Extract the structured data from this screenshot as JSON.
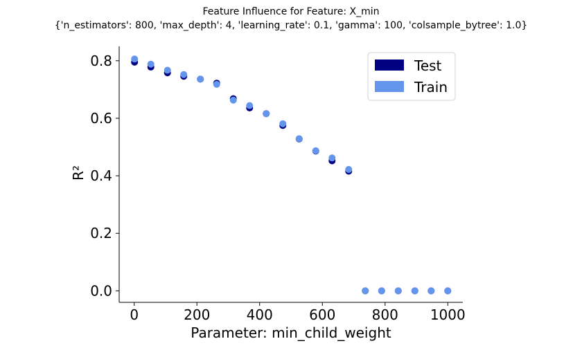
{
  "chart_data": {
    "type": "scatter",
    "title": "Feature Influence for Feature: X_min",
    "subtitle": "{'n_estimators': 800, 'max_depth': 4, 'learning_rate': 0.1, 'gamma': 100, 'colsample_bytree': 1.0}",
    "xlabel": "Parameter: min_child_weight",
    "ylabel": "R²",
    "xlim": [
      -48,
      1048
    ],
    "ylim": [
      -0.04,
      0.85
    ],
    "xticks": [
      0,
      200,
      400,
      600,
      800,
      1000
    ],
    "yticks": [
      0.0,
      0.2,
      0.4,
      0.6,
      0.8
    ],
    "x": [
      1,
      53,
      106,
      158,
      211,
      263,
      316,
      368,
      421,
      474,
      526,
      579,
      631,
      684,
      737,
      789,
      842,
      895,
      947,
      1000
    ],
    "series": [
      {
        "name": "Test",
        "color": "#000080",
        "values": [
          0.795,
          0.778,
          0.758,
          0.746,
          0.736,
          0.722,
          0.668,
          0.636,
          0.616,
          0.575,
          0.528,
          0.486,
          0.452,
          0.416,
          0.0,
          0.0,
          0.0,
          0.0,
          0.0,
          0.0
        ]
      },
      {
        "name": "Train",
        "color": "#6495ED",
        "values": [
          0.806,
          0.788,
          0.767,
          0.752,
          0.736,
          0.718,
          0.663,
          0.644,
          0.616,
          0.581,
          0.529,
          0.487,
          0.462,
          0.422,
          0.0,
          0.0,
          0.0,
          0.0,
          0.0,
          0.0
        ]
      }
    ],
    "legend_position": "top-right",
    "grid": false
  }
}
